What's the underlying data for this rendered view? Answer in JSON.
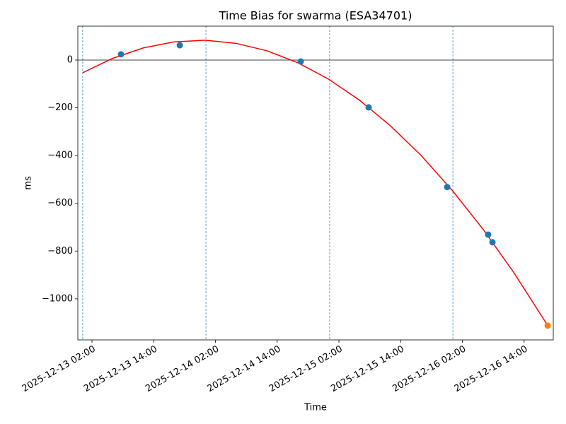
{
  "chart_data": {
    "type": "scatter",
    "title": "Time Bias for swarma (ESA34701)",
    "x_label": "Time",
    "y_label": "ms",
    "xlim": [
      "2025-12-12 23:15",
      "2025-12-16 19:40"
    ],
    "xticks": [
      "2025-12-13 02:00",
      "2025-12-13 14:00",
      "2025-12-14 02:00",
      "2025-12-14 14:00",
      "2025-12-15 02:00",
      "2025-12-15 14:00",
      "2025-12-16 02:00",
      "2025-12-16 14:00"
    ],
    "ylim": [
      -1172,
      142
    ],
    "yticks": [
      {
        "value": -1000,
        "label": "−1000"
      },
      {
        "value": -800,
        "label": "−800"
      },
      {
        "value": -600,
        "label": "−600"
      },
      {
        "value": -400,
        "label": "−400"
      },
      {
        "value": -200,
        "label": "−200"
      },
      0
    ],
    "hlines": [
      0
    ],
    "vlines": [
      "2025-12-13 00:12",
      "2025-12-14 00:09",
      "2025-12-15 00:12",
      "2025-12-16 00:09"
    ],
    "series": [
      {
        "type": "scatter",
        "color": "#1f77b4",
        "x": [
          "2025-12-13 07:38",
          "2025-12-13 19:04",
          "2025-12-14 18:35",
          "2025-12-15 07:47",
          "2025-12-15 23:03",
          "2025-12-16 07:00",
          "2025-12-16 07:51"
        ],
        "values": [
          24,
          62,
          -6,
          -198,
          -532,
          -731,
          -763
        ]
      },
      {
        "type": "line",
        "color": "#ff0000",
        "x": [
          "2025-12-13 00:12",
          "2025-12-13 06:00",
          "2025-12-13 12:00",
          "2025-12-13 18:00",
          "2025-12-14 00:00",
          "2025-12-14 06:00",
          "2025-12-14 12:00",
          "2025-12-14 18:00",
          "2025-12-15 00:00",
          "2025-12-15 06:00",
          "2025-12-15 12:00",
          "2025-12-15 18:00",
          "2025-12-16 00:00",
          "2025-12-16 06:00",
          "2025-12-16 12:00",
          "2025-12-16 18:36"
        ],
        "values": [
          -53,
          7,
          51,
          76,
          83,
          70,
          39,
          -11,
          -80,
          -168,
          -275,
          -400,
          -545,
          -708,
          -890,
          -1112
        ]
      },
      {
        "type": "scatter",
        "color": "#ff7f0e",
        "x": [
          "2025-12-16 18:35"
        ],
        "values": [
          -1112
        ]
      }
    ]
  }
}
